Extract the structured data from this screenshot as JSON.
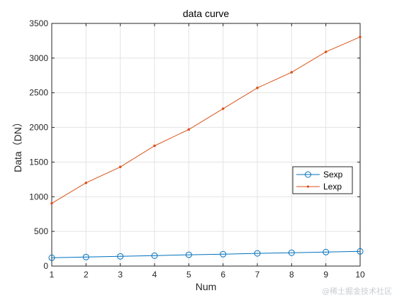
{
  "chart_data": {
    "type": "line",
    "title": "data curve",
    "xlabel": "Num",
    "ylabel": "Data（DN）",
    "xlim": [
      1,
      10
    ],
    "ylim": [
      0,
      3500
    ],
    "xticks": [
      1,
      2,
      3,
      4,
      5,
      6,
      7,
      8,
      9,
      10
    ],
    "yticks": [
      0,
      500,
      1000,
      1500,
      2000,
      2500,
      3000,
      3500
    ],
    "grid": true,
    "legend_position": "right",
    "x": [
      1,
      2,
      3,
      4,
      5,
      6,
      7,
      8,
      9,
      10
    ],
    "series": [
      {
        "name": "Sexp",
        "values": [
          120,
          130,
          140,
          150,
          163,
          172,
          183,
          192,
          202,
          212
        ],
        "color": "#0072bd",
        "marker": "circle"
      },
      {
        "name": "Lexp",
        "values": [
          905,
          1200,
          1430,
          1735,
          1970,
          2270,
          2570,
          2795,
          3090,
          3305
        ],
        "color": "#d95319",
        "marker": "point"
      }
    ]
  },
  "watermark": "@稀土掘金技术社区"
}
